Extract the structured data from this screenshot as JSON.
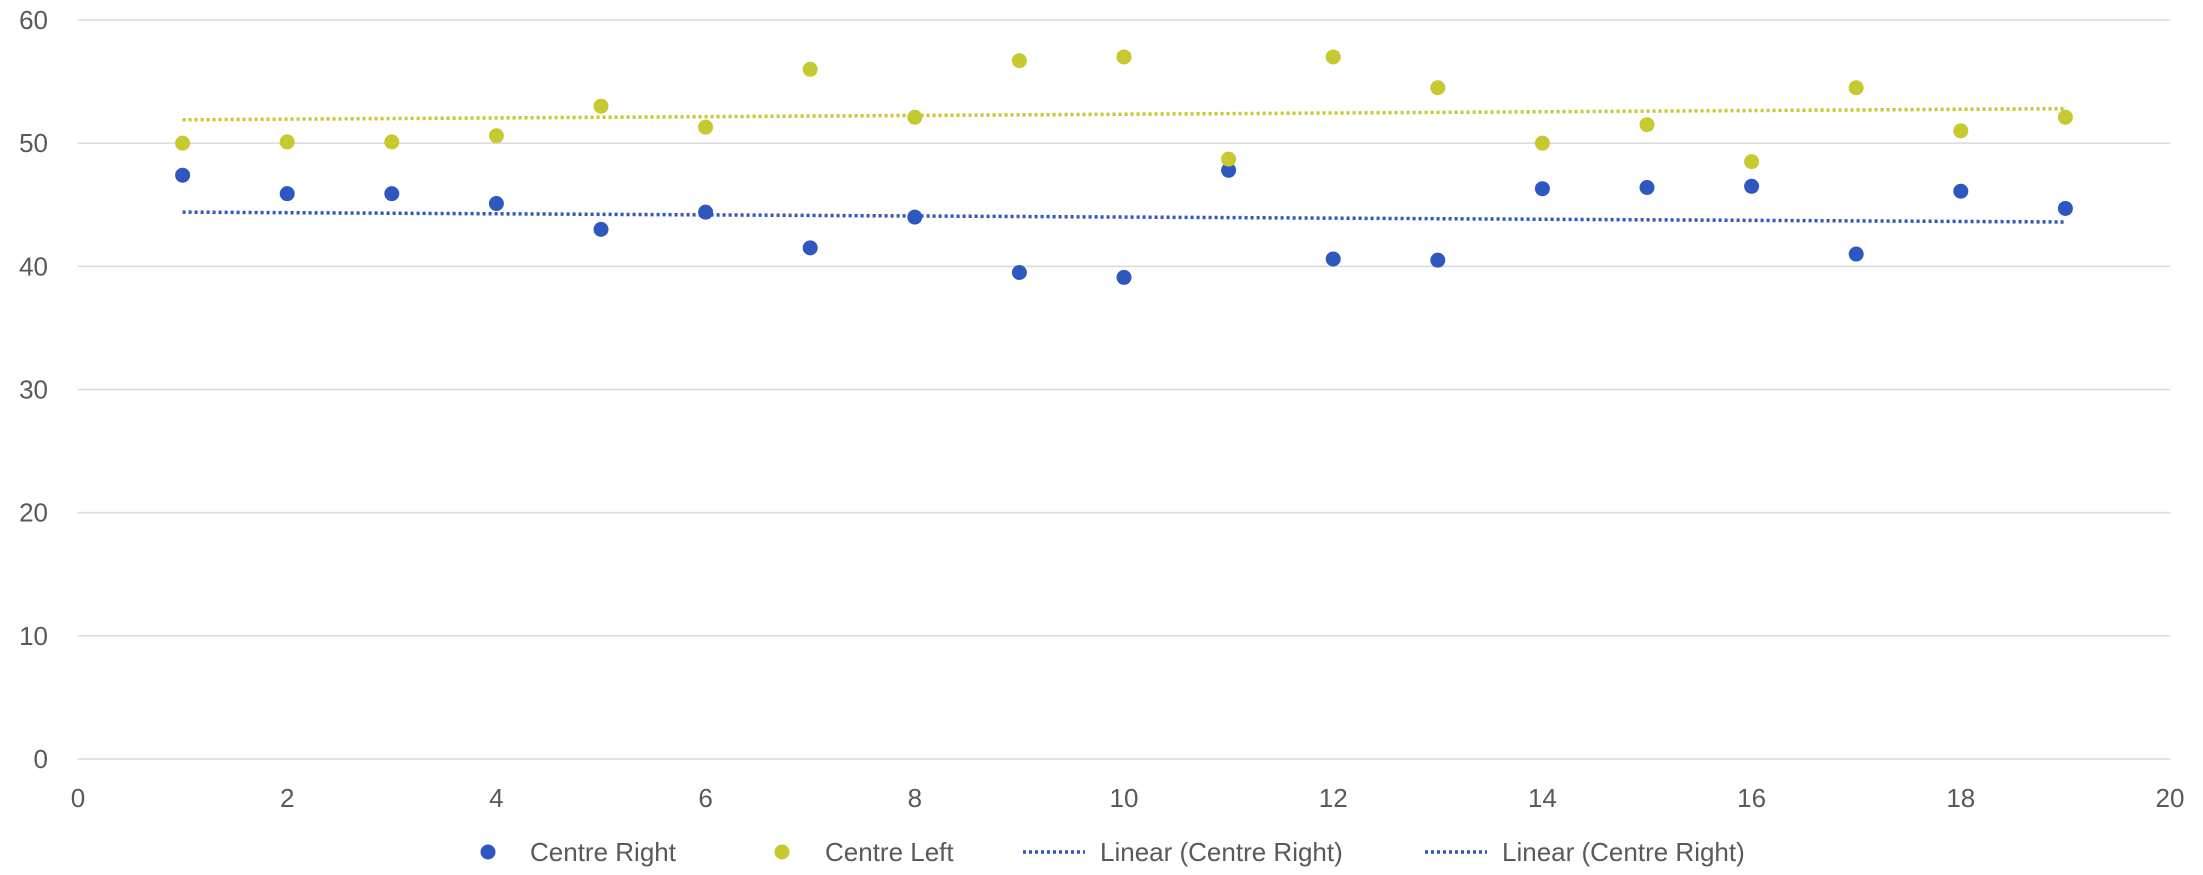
{
  "chart_data": {
    "type": "scatter",
    "title": "",
    "xlabel": "",
    "ylabel": "",
    "xlim": [
      0,
      20
    ],
    "ylim": [
      0,
      60
    ],
    "x_ticks": [
      0,
      2,
      4,
      6,
      8,
      10,
      12,
      14,
      16,
      18,
      20
    ],
    "y_ticks": [
      0,
      10,
      20,
      30,
      40,
      50,
      60
    ],
    "grid": "horizontal",
    "legend_position": "bottom",
    "series": [
      {
        "name": "Centre Right",
        "kind": "points",
        "color": "#2f57c0",
        "x": [
          1,
          2,
          3,
          4,
          5,
          6,
          7,
          8,
          9,
          10,
          11,
          12,
          13,
          14,
          15,
          16,
          17,
          18,
          19
        ],
        "y": [
          47.4,
          45.9,
          45.9,
          45.1,
          43.0,
          44.4,
          41.5,
          44.0,
          39.5,
          39.1,
          47.8,
          40.6,
          40.5,
          46.3,
          46.4,
          46.5,
          41.0,
          46.1,
          44.7
        ]
      },
      {
        "name": "Centre Left",
        "kind": "points",
        "color": "#c6c930",
        "x": [
          1,
          2,
          3,
          4,
          5,
          6,
          7,
          8,
          9,
          10,
          11,
          12,
          13,
          14,
          15,
          16,
          17,
          18,
          19
        ],
        "y": [
          50.0,
          50.1,
          50.1,
          50.6,
          53.0,
          51.3,
          56.0,
          52.1,
          56.7,
          57.0,
          48.7,
          57.0,
          54.5,
          50.0,
          51.5,
          48.5,
          54.5,
          51.0,
          52.1
        ]
      },
      {
        "name": "Linear (Centre Right)",
        "kind": "trendline",
        "color": "#2f57c0",
        "x": [
          1,
          19
        ],
        "y": [
          44.4,
          43.6
        ]
      },
      {
        "name": "Linear (Centre Right)",
        "kind": "trendline",
        "legend_color": "#2f57c0",
        "color": "#c6c930",
        "x": [
          1,
          19
        ],
        "y": [
          51.9,
          52.8
        ]
      }
    ]
  }
}
